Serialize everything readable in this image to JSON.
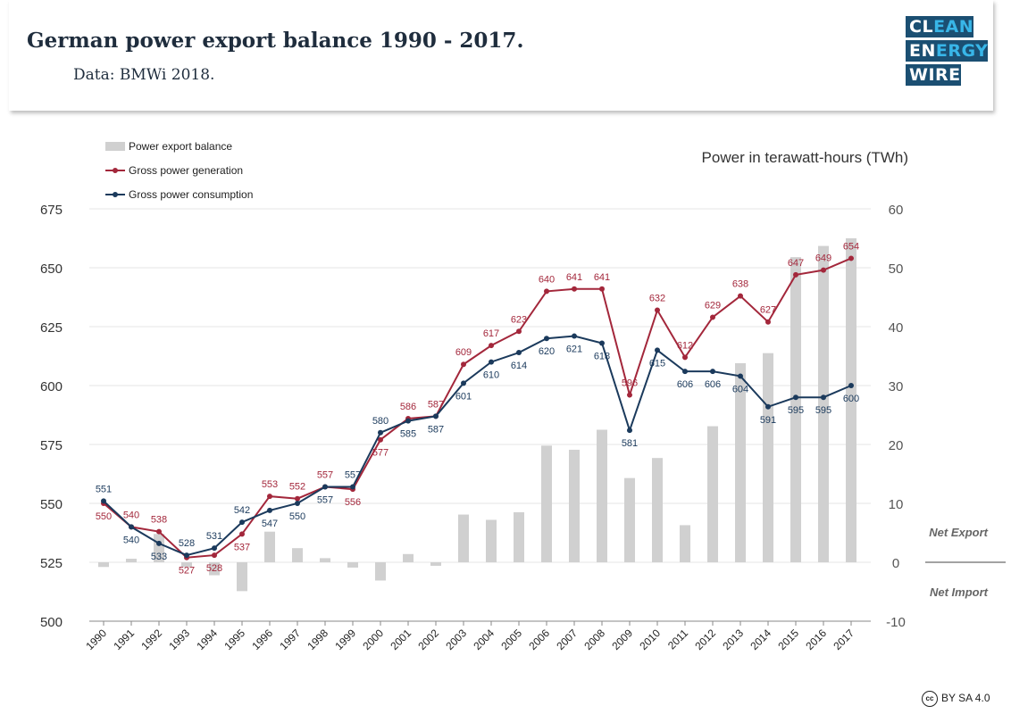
{
  "header": {
    "title": "German power export balance 1990 - 2017.",
    "subtitle": "Data: BMWi 2018."
  },
  "logo": {
    "row1_a": "CL",
    "row1_b": "EAN",
    "row2_a": "EN",
    "row2_b": "ERGY",
    "row3": "WIRE"
  },
  "license": {
    "icon": "cc-icon",
    "text": "BY SA 4.0"
  },
  "colors": {
    "bars": "#d0d0d0",
    "generation": "#a3273b",
    "consumption": "#1b3a5c",
    "grid": "#e6e6e6"
  },
  "chart_data": {
    "type": "bar+line",
    "unit_label": "Power in terawatt-hours (TWh)",
    "categories": [
      "1990",
      "1991",
      "1992",
      "1993",
      "1994",
      "1995",
      "1996",
      "1997",
      "1998",
      "1999",
      "2000",
      "2001",
      "2002",
      "2003",
      "2004",
      "2005",
      "2006",
      "2007",
      "2008",
      "2009",
      "2010",
      "2011",
      "2012",
      "2013",
      "2014",
      "2015",
      "2016",
      "2017"
    ],
    "y_left": {
      "range": [
        500,
        675
      ],
      "ticks": [
        "500",
        "525",
        "550",
        "575",
        "600",
        "625",
        "650",
        "675"
      ]
    },
    "y_right": {
      "range": [
        -10,
        60
      ],
      "ticks": [
        "-10",
        "0",
        "10",
        "20",
        "30",
        "40",
        "50",
        "60"
      ]
    },
    "annotations": {
      "net_export": "Net Export",
      "net_import": "Net Import"
    },
    "legend_position": "top-left",
    "grid": true,
    "series": [
      {
        "name": "Power export balance",
        "type": "bar",
        "axis": "right",
        "values": [
          -0.8,
          0.6,
          4.8,
          -0.8,
          -2.2,
          -4.9,
          5.2,
          2.4,
          0.7,
          -0.9,
          -3.1,
          1.4,
          -0.6,
          8.1,
          7.2,
          8.5,
          19.8,
          19.1,
          22.5,
          14.3,
          17.7,
          6.3,
          23.1,
          33.8,
          35.5,
          51.8,
          53.7,
          55.0
        ]
      },
      {
        "name": "Gross power generation",
        "type": "line",
        "axis": "left",
        "values": [
          550,
          540,
          538,
          527,
          528,
          537,
          553,
          552,
          557,
          556,
          577,
          586,
          587,
          609,
          617,
          623,
          640,
          641,
          641,
          596,
          632,
          612,
          629,
          638,
          627,
          647,
          649,
          654
        ],
        "labels": [
          "550",
          "540",
          "538",
          "527",
          "528",
          "537",
          "553",
          "552",
          "557",
          "556",
          "577",
          "586",
          "587",
          "609",
          "617",
          "623",
          "640",
          "641",
          "641",
          "596",
          "632",
          "612",
          "629",
          "638",
          "627",
          "647",
          "649",
          "654"
        ]
      },
      {
        "name": "Gross power consumption",
        "type": "line",
        "axis": "left",
        "values": [
          551,
          540,
          533,
          528,
          531,
          542,
          547,
          550,
          557,
          557,
          580,
          585,
          587,
          601,
          610,
          614,
          620,
          621,
          618,
          581,
          615,
          606,
          606,
          604,
          591,
          595,
          595,
          600
        ],
        "labels": [
          "551",
          "540",
          "533",
          "528",
          "531",
          "542",
          "547",
          "550",
          "557",
          "557",
          "580",
          "585",
          "587",
          "601",
          "610",
          "614",
          "620",
          "621",
          "618",
          "581",
          "615",
          "606",
          "606",
          "604",
          "591",
          "595",
          "595",
          "600"
        ]
      }
    ]
  }
}
